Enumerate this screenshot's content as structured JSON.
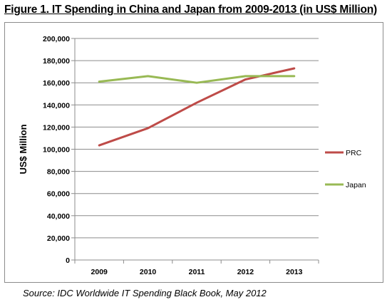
{
  "figure": {
    "title": "Figure 1. IT Spending in China and Japan from 2009-2013 (in US$ Million)",
    "source": "Source: IDC Worldwide IT Spending Black Book, May 2012"
  },
  "chart_data": {
    "type": "line",
    "title": "Figure 1. IT Spending in China and Japan from 2009-2013 (in US$ Million)",
    "xlabel": "",
    "ylabel": "US$ Million",
    "categories": [
      "2009",
      "2010",
      "2011",
      "2012",
      "2013"
    ],
    "ylim": [
      0,
      200000
    ],
    "yticks": [
      0,
      20000,
      40000,
      60000,
      80000,
      100000,
      120000,
      140000,
      160000,
      180000,
      200000
    ],
    "ytick_labels": [
      "0",
      "20,000",
      "40,000",
      "60,000",
      "80,000",
      "100,000",
      "120,000",
      "140,000",
      "160,000",
      "180,000",
      "200,000"
    ],
    "grid": true,
    "legend_position": "right",
    "series": [
      {
        "name": "PRC",
        "color": "#be4b48",
        "values": [
          103500,
          119000,
          142000,
          163000,
          173000
        ]
      },
      {
        "name": "Japan",
        "color": "#98b954",
        "values": [
          161000,
          166000,
          160000,
          166000,
          166000
        ]
      }
    ]
  }
}
